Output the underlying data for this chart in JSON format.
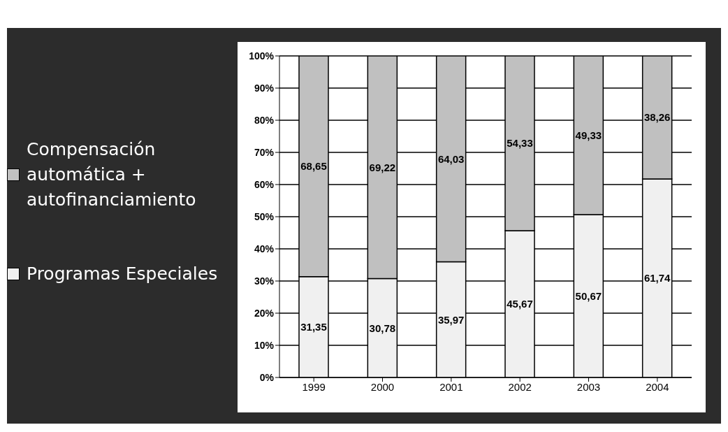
{
  "chart_data": {
    "type": "bar",
    "stacked": true,
    "categories": [
      "1999",
      "2000",
      "2001",
      "2002",
      "2003",
      "2004"
    ],
    "series": [
      {
        "name": "Programas Especiales",
        "color": "#f0f0f0",
        "values": [
          31.35,
          30.78,
          35.97,
          45.67,
          50.67,
          61.74
        ],
        "value_labels": [
          "31,35",
          "30,78",
          "35,97",
          "45,67",
          "50,67",
          "61,74"
        ]
      },
      {
        "name": "Compensación automática + autofinanciamiento",
        "color": "#c0c0c0",
        "values": [
          68.65,
          69.22,
          64.03,
          54.33,
          49.33,
          38.26
        ],
        "value_labels": [
          "68,65",
          "69,22",
          "64,03",
          "54,33",
          "49,33",
          "38,26"
        ]
      }
    ],
    "ylim": [
      0,
      100
    ],
    "yticks": [
      {
        "value": 0,
        "label": "0%"
      },
      {
        "value": 10,
        "label": "10%"
      },
      {
        "value": 20,
        "label": "20%"
      },
      {
        "value": 30,
        "label": "30%"
      },
      {
        "value": 40,
        "label": "40%"
      },
      {
        "value": 50,
        "label": "50%"
      },
      {
        "value": 60,
        "label": "60%"
      },
      {
        "value": 70,
        "label": "70%"
      },
      {
        "value": 80,
        "label": "80%"
      },
      {
        "value": 90,
        "label": "90%"
      },
      {
        "value": 100,
        "label": "100%"
      }
    ],
    "grid": "y",
    "legend": "left"
  }
}
